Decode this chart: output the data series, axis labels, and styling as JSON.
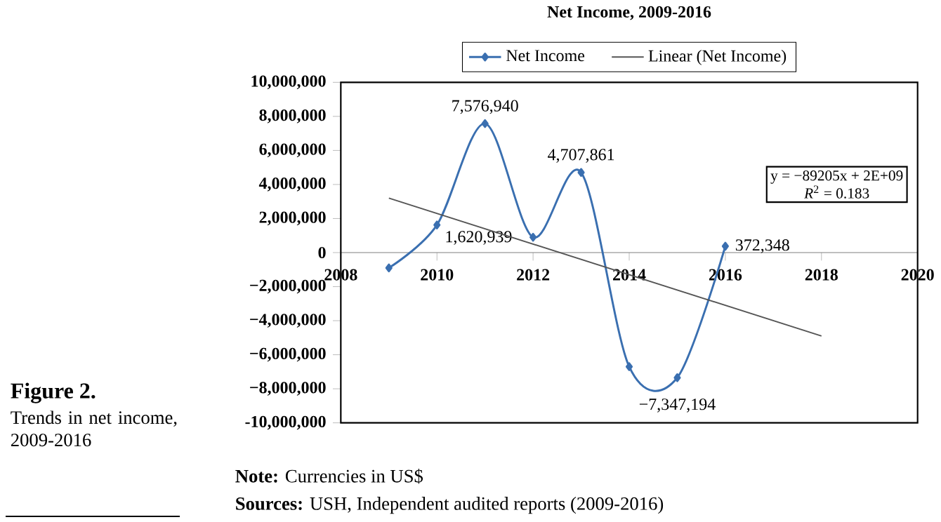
{
  "chart_data": {
    "type": "line",
    "title": "Net Income, 2009-2016",
    "series": [
      {
        "name": "Net Income",
        "type": "line",
        "color": "#3a6fb0",
        "marker": "diamond",
        "x": [
          2009,
          2010,
          2011,
          2012,
          2013,
          2014,
          2015,
          2016
        ],
        "values": [
          -900000,
          1620939,
          7576940,
          900000,
          4707861,
          -6700000,
          -7347194,
          372348
        ],
        "value_labels": [
          null,
          "1,620,939",
          "7,576,940",
          null,
          "4,707,861",
          null,
          "−7,347,194",
          "372,348"
        ]
      },
      {
        "name": "Linear (Net Income)",
        "type": "line",
        "color": "#555555",
        "marker": "none",
        "x": [
          2009,
          2018
        ],
        "values": [
          3200000,
          -4900000
        ]
      }
    ],
    "xlim": [
      2008,
      2020
    ],
    "xticks": [
      2008,
      2010,
      2012,
      2014,
      2016,
      2018,
      2020
    ],
    "ylim": [
      -10000000,
      10000000
    ],
    "yticks": [
      {
        "value": -10000000,
        "label": "-10,000,000"
      },
      {
        "value": -8000000,
        "label": "−8,000,000"
      },
      {
        "value": -6000000,
        "label": "−6,000,000"
      },
      {
        "value": -4000000,
        "label": "−4,000,000"
      },
      {
        "value": -2000000,
        "label": "−2,000,000"
      },
      {
        "value": 0,
        "label": "0"
      },
      {
        "value": 2000000,
        "label": "2,000,000"
      },
      {
        "value": 4000000,
        "label": "4,000,000"
      },
      {
        "value": 6000000,
        "label": "6,000,000"
      },
      {
        "value": 8000000,
        "label": "8,000,000"
      },
      {
        "value": 10000000,
        "label": "10,000,000"
      }
    ],
    "legend": "top",
    "grid": false,
    "line_style": "solid",
    "annotations": [
      "**Figure 2.**",
      "Trends in net income, 2009-2016",
      "**Note:** Currencies in US$",
      "**Sources:** USH, Independent audited reports (2009-2016)",
      "y = −89205x + 2E+09",
      "*R*$^{2}$ = 0.183"
    ]
  }
}
